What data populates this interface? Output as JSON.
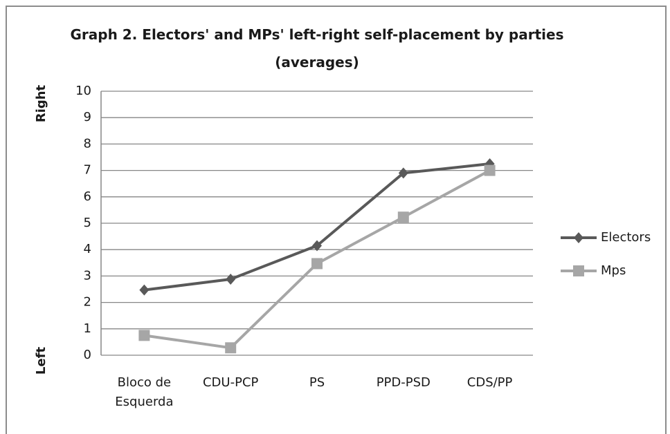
{
  "chart_data": {
    "type": "line",
    "title": "Graph 2. Electors' and MPs' left-right self-placement by parties (averages)",
    "y_label_top": "Right",
    "y_label_bottom": "Left",
    "categories": [
      "Bloco de Esquerda",
      "CDU-PCP",
      "PS",
      "PPD-PSD",
      "CDS/PP"
    ],
    "series": [
      {
        "name": "Electors",
        "color": "#595959",
        "marker": "diamond",
        "values": [
          2.47,
          2.88,
          4.15,
          6.9,
          7.25
        ]
      },
      {
        "name": "Mps",
        "color": "#a6a6a6",
        "marker": "square",
        "values": [
          0.75,
          0.28,
          3.47,
          5.23,
          7.0
        ]
      }
    ],
    "ylim": [
      0,
      10
    ],
    "yticks": [
      0,
      1,
      2,
      3,
      4,
      5,
      6,
      7,
      8,
      9,
      10
    ],
    "grid": true,
    "legend": "right"
  }
}
